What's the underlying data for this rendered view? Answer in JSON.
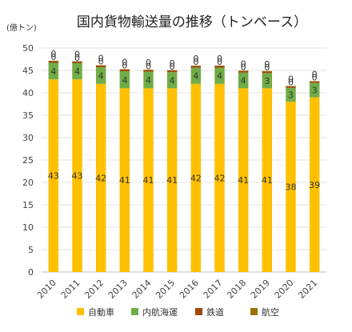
{
  "chart_data": {
    "type": "bar",
    "stacked": true,
    "title": "国内貨物輸送量の推移（トンベース）",
    "unit_label": "(億トン)",
    "categories": [
      "2010",
      "2011",
      "2012",
      "2013",
      "2014",
      "2015",
      "2016",
      "2017",
      "2018",
      "2019",
      "2020",
      "2021"
    ],
    "ylim": [
      0,
      50
    ],
    "yticks": [
      0,
      5,
      10,
      15,
      20,
      25,
      30,
      35,
      40,
      45,
      50
    ],
    "grid": true,
    "legend_position": "bottom",
    "series": [
      {
        "name": "自動車",
        "color": "#FFC000",
        "values": [
          43,
          43,
          42,
          41,
          41,
          41,
          42,
          42,
          41,
          41,
          38,
          39
        ],
        "labels": [
          "43",
          "43",
          "42",
          "41",
          "41",
          "41",
          "42",
          "42",
          "41",
          "41",
          "38",
          "39"
        ]
      },
      {
        "name": "内航海運",
        "color": "#70AD47",
        "values": [
          3.7,
          3.6,
          3.7,
          3.8,
          3.7,
          3.6,
          3.6,
          3.6,
          3.5,
          3.4,
          3.1,
          3.2
        ],
        "labels": [
          "4",
          "4",
          "4",
          "4",
          "4",
          "4",
          "4",
          "4",
          "4",
          "3",
          "3",
          "3"
        ]
      },
      {
        "name": "鉄道",
        "color": "#9E480E",
        "values": [
          0.43,
          0.4,
          0.42,
          0.44,
          0.43,
          0.43,
          0.44,
          0.45,
          0.42,
          0.43,
          0.39,
          0.39
        ],
        "labels": [
          "0",
          "0",
          "0",
          "0",
          "0",
          "0",
          "0",
          "0",
          "0",
          "0",
          "0",
          "0"
        ]
      },
      {
        "name": "航空",
        "color": "#997300",
        "values": [
          0.01,
          0.01,
          0.01,
          0.01,
          0.01,
          0.01,
          0.01,
          0.01,
          0.01,
          0.01,
          0.005,
          0.005
        ],
        "labels": [
          "0",
          "0",
          "0",
          "0",
          "0",
          "0",
          "0",
          "0",
          "0",
          "0",
          "0",
          "0"
        ]
      }
    ]
  }
}
